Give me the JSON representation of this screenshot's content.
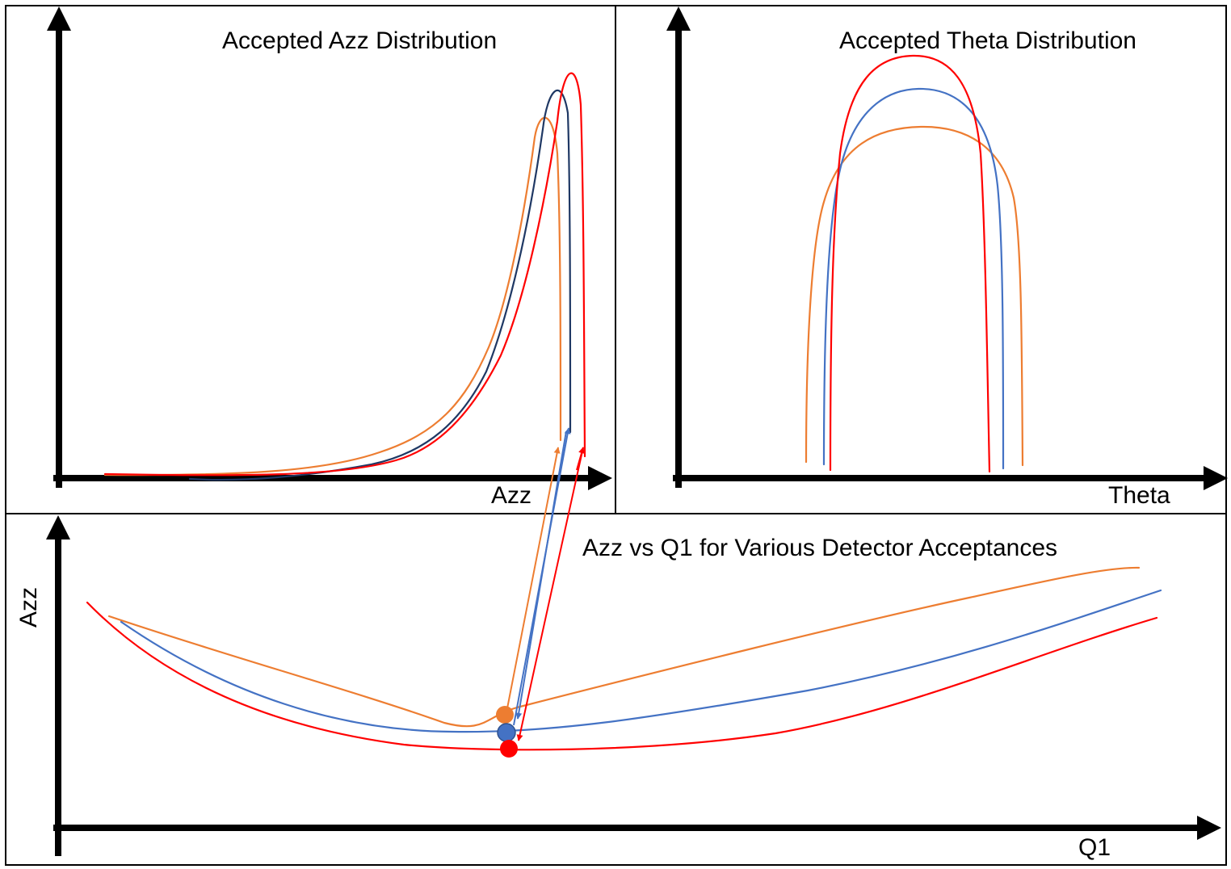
{
  "colors": {
    "orange": "#ed7d31",
    "blue": "#4472c4",
    "dark_blue": "#1f3864",
    "red": "#ff0000",
    "axis": "#000000",
    "border": "#000000"
  },
  "panels": {
    "azz_distribution": {
      "title": "Accepted Azz Distribution",
      "xlabel": "Azz",
      "ylabel": "",
      "curves": [
        "orange",
        "dark-blue",
        "red"
      ]
    },
    "theta_distribution": {
      "title": "Accepted Theta Distribution",
      "xlabel": "Theta",
      "ylabel": "",
      "curves": [
        "orange",
        "blue",
        "red"
      ]
    },
    "azz_vs_q1": {
      "title": "Azz vs Q1 for Various Detector Acceptances",
      "xlabel": "Q1",
      "ylabel": "Azz",
      "curves": [
        "orange",
        "blue",
        "red"
      ],
      "minimum_markers": [
        "orange",
        "blue",
        "red"
      ]
    }
  },
  "connectors": [
    {
      "from": "azz_vs_q1.minimum_markers.orange",
      "to": "azz_distribution.curves.orange"
    },
    {
      "from": "azz_vs_q1.minimum_markers.blue",
      "to": "azz_distribution.curves.dark-blue"
    },
    {
      "from": "azz_distribution.curves.red",
      "to": "azz_vs_q1.minimum_markers.red"
    }
  ]
}
